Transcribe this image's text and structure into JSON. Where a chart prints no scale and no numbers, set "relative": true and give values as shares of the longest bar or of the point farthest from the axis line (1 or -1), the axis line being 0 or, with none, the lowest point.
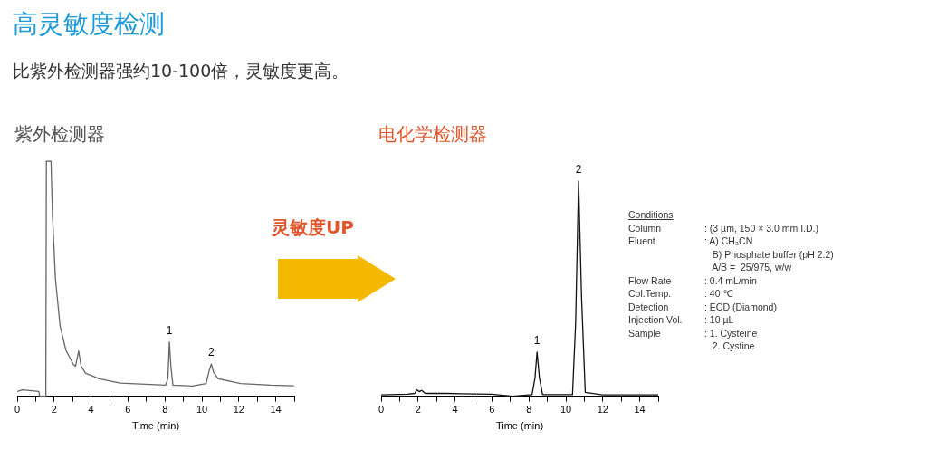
{
  "chart_data": [
    {
      "type": "line",
      "title": "紫外检测器",
      "xlabel": "Time (min)",
      "relative": true,
      "xlim": [
        0,
        15
      ],
      "xticks": [
        0,
        {
          "value": 1,
          "label": null
        },
        2,
        {
          "value": 3,
          "label": null
        },
        4,
        {
          "value": 5,
          "label": null
        },
        6,
        {
          "value": 7,
          "label": null
        },
        8,
        {
          "value": 9,
          "label": null
        },
        10,
        {
          "value": 11,
          "label": null
        },
        12,
        {
          "value": 13,
          "label": null
        },
        14,
        {
          "value": 15,
          "label": null
        }
      ],
      "series": [
        {
          "color": "#666666",
          "x": [
            0,
            0.28,
            1.17,
            1.22,
            1.55,
            1.58,
            1.83,
            1.91,
            2.07,
            2.32,
            2.64,
            3.05,
            3.16,
            3.33,
            3.46,
            3.7,
            4.44,
            5.58,
            7.21,
            8.03,
            8.16,
            8.24,
            8.32,
            8.43,
            9.49,
            10.23,
            10.39,
            10.51,
            10.64,
            10.88,
            12.1,
            13.74,
            14.99
          ],
          "values": [
            0.02,
            0.027,
            0.02,
            0,
            0,
            1,
            1,
            0.77,
            0.5,
            0.3,
            0.195,
            0.134,
            0.128,
            0.192,
            0.128,
            0.098,
            0.074,
            0.056,
            0.05,
            0.047,
            0.074,
            0.231,
            0.128,
            0.047,
            0.043,
            0.054,
            0.107,
            0.137,
            0.101,
            0.074,
            0.054,
            0.047,
            0.044
          ]
        }
      ],
      "annotations": [
        "高灵敏度检测",
        "比紫外检测器强约10-100倍，灵敏度更高。",
        {
          "text": "1",
          "x": 8.24,
          "y": 0.231
        },
        {
          "text": "2",
          "x": 10.51,
          "y": 0.137
        }
      ]
    },
    {
      "type": "line",
      "title": "电化学检测器",
      "xlabel": "Time (min)",
      "relative": true,
      "xlim": [
        0,
        15
      ],
      "xticks": [
        0,
        {
          "value": 1,
          "label": null
        },
        2,
        {
          "value": 3,
          "label": null
        },
        4,
        {
          "value": 5,
          "label": null
        },
        6,
        {
          "value": 7,
          "label": null
        },
        8,
        {
          "value": 9,
          "label": null
        },
        10,
        {
          "value": 11,
          "label": null
        },
        12,
        {
          "value": 13,
          "label": null
        },
        14,
        {
          "value": 15,
          "label": null
        }
      ],
      "series": [
        {
          "color": "#111111",
          "x": [
            0,
            1.42,
            1.82,
            1.93,
            2.07,
            2.2,
            2.39,
            3.53,
            5.97,
            7.11,
            8.17,
            8.33,
            8.44,
            8.57,
            8.74,
            10.36,
            10.53,
            10.69,
            10.85,
            11.05,
            11.99,
            15
          ],
          "values": [
            0.006,
            0.009,
            0.013,
            0.03,
            0.021,
            0.027,
            0.013,
            0.013,
            0.009,
            0,
            0.007,
            0.085,
            0.205,
            0.085,
            0.007,
            0.007,
            0.34,
            1,
            0.46,
            0.018,
            0.006,
            0.006
          ]
        }
      ],
      "annotations": [
        "灵敏度UP",
        {
          "text": "1",
          "x": 8.44,
          "y": 0.205
        },
        {
          "text": "2",
          "x": 10.69,
          "y": 1
        },
        "Conditions",
        "Column",
        ": (3 µm, 150 × 3.0 mm I.D.)",
        "Eluent",
        ": A) CH₃CN\n   B) Phosphate buffer (pH 2.2)\n   A/B =  25/975, w/w",
        "Flow Rate",
        ": 0.4 mL/min",
        "Col.Temp.",
        ": 40 ℃",
        "Detection",
        ": ECD (Diamond)",
        "Injection Vol.",
        ": 10 µL",
        "Sample",
        ": 1. Cysteine\n   2. Cystine"
      ]
    }
  ]
}
